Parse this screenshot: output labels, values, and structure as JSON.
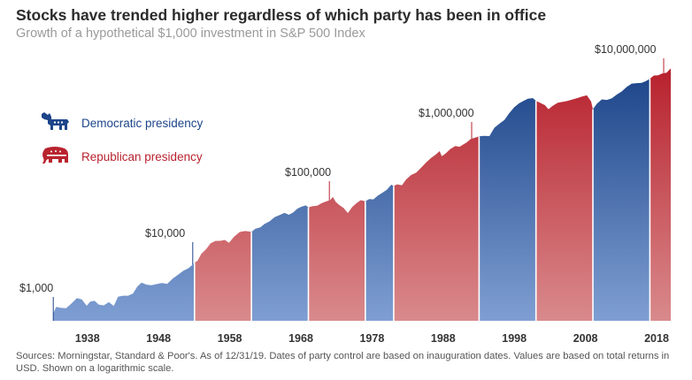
{
  "title": "Stocks have trended higher regardless of which party has been in office",
  "subtitle": "Growth of a hypothetical $1,000 investment in S&P 500 Index",
  "legend": {
    "democratic": {
      "label": "Democratic presidency",
      "icon": "donkey-icon",
      "color": "#1d4589"
    },
    "republican": {
      "label": "Republican presidency",
      "icon": "elephant-icon",
      "color": "#b8232f"
    }
  },
  "source_note": "Sources: Morningstar, Standard & Poor's. As of 12/31/19. Dates of party control are based on inauguration dates. Values are based on total returns in USD. Shown on a logarithmic scale.",
  "colors": {
    "democratic": "#1d4589",
    "republican": "#b8232f",
    "axis_text": "#333333",
    "annotation_line": "#b8232f"
  },
  "chart_data": {
    "type": "area",
    "yscale": "log",
    "xlim": [
      1933.17,
      2019.99
    ],
    "ylim": [
      1000,
      20000000
    ],
    "grid": false,
    "legend_position": "left-upper",
    "x_ticks": [
      1938,
      1948,
      1958,
      1968,
      1978,
      1988,
      1998,
      2008,
      2018
    ],
    "x_tick_labels": [
      "1938",
      "1948",
      "1958",
      "1968",
      "1978",
      "1988",
      "1998",
      "2008",
      "2018"
    ],
    "annotations": [
      {
        "label": "$1,000",
        "x": 1933.2,
        "y": 1000
      },
      {
        "label": "$10,000",
        "x": 1952.8,
        "y": 10000
      },
      {
        "label": "$100,000",
        "x": 1972.0,
        "y": 100000
      },
      {
        "label": "$1,000,000",
        "x": 1992.0,
        "y": 1000000
      },
      {
        "label": "$10,000,000",
        "x": 2019.0,
        "y": 10000000
      }
    ],
    "periods": [
      {
        "party": "democratic",
        "start": 1933.17,
        "end": 1953.05
      },
      {
        "party": "republican",
        "start": 1953.05,
        "end": 1961.05
      },
      {
        "party": "democratic",
        "start": 1961.05,
        "end": 1969.05
      },
      {
        "party": "republican",
        "start": 1969.05,
        "end": 1977.05
      },
      {
        "party": "democratic",
        "start": 1977.05,
        "end": 1981.05
      },
      {
        "party": "republican",
        "start": 1981.05,
        "end": 1993.05
      },
      {
        "party": "democratic",
        "start": 1993.05,
        "end": 2001.05
      },
      {
        "party": "republican",
        "start": 2001.05,
        "end": 2009.05
      },
      {
        "party": "democratic",
        "start": 2009.05,
        "end": 2017.05
      },
      {
        "party": "republican",
        "start": 2017.05,
        "end": 2019.99
      }
    ],
    "series": [
      {
        "x": [
          1933.17,
          1933.6,
          1934.3,
          1935.0,
          1935.7,
          1936.5,
          1937.2,
          1937.9,
          1938.4,
          1939.0,
          1939.6,
          1940.3,
          1941.0,
          1941.7,
          1942.3,
          1943.0,
          1943.7,
          1944.4,
          1945.0,
          1945.6,
          1946.3,
          1947.0,
          1947.7,
          1948.5,
          1949.2,
          1950.0,
          1950.8,
          1951.5,
          1952.2,
          1952.8,
          1953.05,
          1953.5,
          1954.0,
          1954.7,
          1955.3,
          1956.0,
          1956.7,
          1957.3,
          1957.9,
          1958.6,
          1959.4,
          1960.2,
          1961.05,
          1961.6,
          1962.3,
          1962.9,
          1963.6,
          1964.3,
          1965.0,
          1965.7,
          1966.3,
          1966.9,
          1967.5,
          1968.1,
          1968.7,
          1969.05,
          1969.6,
          1970.3,
          1970.9,
          1971.5,
          1972.1,
          1972.5,
          1972.9,
          1973.4,
          1974.0,
          1974.6,
          1975.2,
          1975.8,
          1976.4,
          1977.05,
          1977.6,
          1978.2,
          1978.8,
          1979.4,
          1980.1,
          1980.7,
          1981.05,
          1981.5,
          1982.2,
          1982.8,
          1983.5,
          1984.2,
          1984.9,
          1985.6,
          1986.3,
          1986.9,
          1987.5,
          1987.8,
          1988.3,
          1989.0,
          1989.7,
          1990.3,
          1990.8,
          1991.3,
          1991.9,
          1992.5,
          1993.05,
          1993.7,
          1994.5,
          1995.2,
          1995.9,
          1996.6,
          1997.3,
          1998.0,
          1998.7,
          1999.3,
          1999.9,
          2000.6,
          2001.05,
          2001.6,
          2002.3,
          2002.8,
          2003.4,
          2004.1,
          2004.8,
          2005.5,
          2006.2,
          2006.9,
          2007.5,
          2008.2,
          2008.8,
          2009.05,
          2009.6,
          2010.3,
          2011.0,
          2011.7,
          2012.4,
          2013.1,
          2013.8,
          2014.5,
          2015.2,
          2015.9,
          2016.5,
          2017.05,
          2017.6,
          2018.2,
          2018.8,
          2019.4,
          2019.99
        ],
        "y": [
          1000,
          1300,
          1250,
          1240,
          1460,
          1820,
          1740,
          1360,
          1600,
          1640,
          1420,
          1380,
          1560,
          1350,
          1920,
          2000,
          2000,
          2180,
          2830,
          3300,
          3060,
          3000,
          3120,
          3250,
          3150,
          3880,
          4530,
          5250,
          5760,
          6620,
          7100,
          7720,
          9980,
          12060,
          14940,
          16430,
          16530,
          17090,
          15300,
          19240,
          23210,
          24050,
          23300,
          26200,
          27800,
          31600,
          34850,
          41050,
          44350,
          48350,
          45050,
          49050,
          56850,
          61300,
          64450,
          59400,
          62250,
          63900,
          70050,
          74850,
          78700,
          89050,
          73750,
          65300,
          58200,
          47920,
          60300,
          69880,
          78900,
          75700,
          82000,
          81400,
          93540,
          103700,
          118000,
          143000,
          136000,
          145000,
          140000,
          175000,
          208000,
          227000,
          274700,
          335400,
          400000,
          450000,
          520300,
          426300,
          470000,
          563200,
          630300,
          613300,
          668100,
          726000,
          832400,
          875200,
          917000,
          936300,
          926300,
          1279000,
          1493000,
          1720000,
          2247000,
          2826000,
          3295000,
          3600000,
          3900000,
          3990000,
          3600000,
          3340000,
          3040000,
          2604000,
          2968000,
          3333000,
          3465000,
          3600000,
          3800000,
          4012000,
          4250000,
          4440000,
          3500000,
          2600000,
          3210000,
          3800000,
          3720000,
          3950000,
          4580000,
          5160000,
          6140000,
          6975000,
          7100000,
          7200000,
          7700000,
          8400000,
          9510000,
          9600000,
          10300000,
          10600000,
          12500000
        ]
      }
    ]
  }
}
